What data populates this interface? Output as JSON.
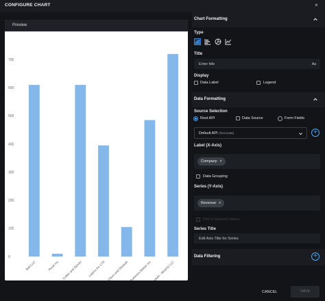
{
  "dialog": {
    "title": "CONFIGURE CHART",
    "close": "×"
  },
  "preview": {
    "title": "Preview"
  },
  "chart_data": {
    "type": "bar",
    "categories": [
      "Bait LLC",
      "Roob Inc",
      "Collier and Sporer",
      "Legros Inc LTD",
      "Stanton, Olson and Denesik",
      "Bahmers Weber Inc",
      "Goodwin - Murphy LLC"
    ],
    "values": [
      610,
      10,
      610,
      395,
      105,
      485,
      720
    ],
    "yticks": [
      0,
      100,
      200,
      300,
      400,
      500,
      600,
      700
    ],
    "ylim": [
      0,
      800
    ],
    "color": "#84b7ea",
    "grid": false
  },
  "chart_formatting": {
    "title": "Chart Formatting",
    "type_label": "Type",
    "types": [
      "bar-chart-icon",
      "horizontal-bar-icon",
      "pie-chart-icon",
      "line-chart-icon"
    ],
    "title_label": "Title",
    "title_placeholder": "Enter title",
    "aa": "Aa",
    "display_label": "Display",
    "data_label": "Data Label",
    "legend": "Legend"
  },
  "data_formatting": {
    "title": "Data Formatting",
    "source_label": "Source Selection",
    "sources": [
      "Rest API",
      "Data Source",
      "Form Fields"
    ],
    "api_value": "Default API",
    "api_tag": "(Test Data)",
    "label_axis": "Label (X-Axis)",
    "label_chip": "Company",
    "data_grouping": "Data Grouping",
    "series_axis": "Series (Y-Axis)",
    "series_chip": "Revenue",
    "hidden_option": "Plot to Dataset Values",
    "series_title_label": "Series Title",
    "series_title_placeholder": "Edit Axis Title for Series"
  },
  "data_filtering": {
    "title": "Data Filtering"
  },
  "footer": {
    "cancel": "CANCEL",
    "save": "SAVE"
  },
  "colors": {
    "accent": "#4aa8ff",
    "bar": "#84b7ea"
  }
}
